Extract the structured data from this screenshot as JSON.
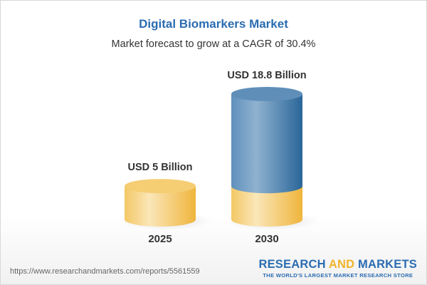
{
  "header": {
    "title": "Digital Biomarkers Market",
    "subtitle": "Market forecast to grow at a CAGR of 30.4%"
  },
  "chart_data": {
    "type": "bar",
    "style": "3d-cylinder",
    "categories": [
      "2025",
      "2030"
    ],
    "values": [
      5,
      18.8
    ],
    "unit": "USD Billion",
    "data_labels": [
      "USD 5 Billion",
      "USD 18.8 Billion"
    ],
    "colors": {
      "base": "#f2c45a",
      "growth": "#3f78ab"
    },
    "cagr": "30.4%"
  },
  "footer": {
    "url": "https://www.researchandmarkets.com/reports/5561559",
    "logo_part1": "RESEARCH ",
    "logo_part2": "AND",
    "logo_part3": " MARKETS",
    "tagline": "THE WORLD'S LARGEST MARKET RESEARCH STORE"
  }
}
